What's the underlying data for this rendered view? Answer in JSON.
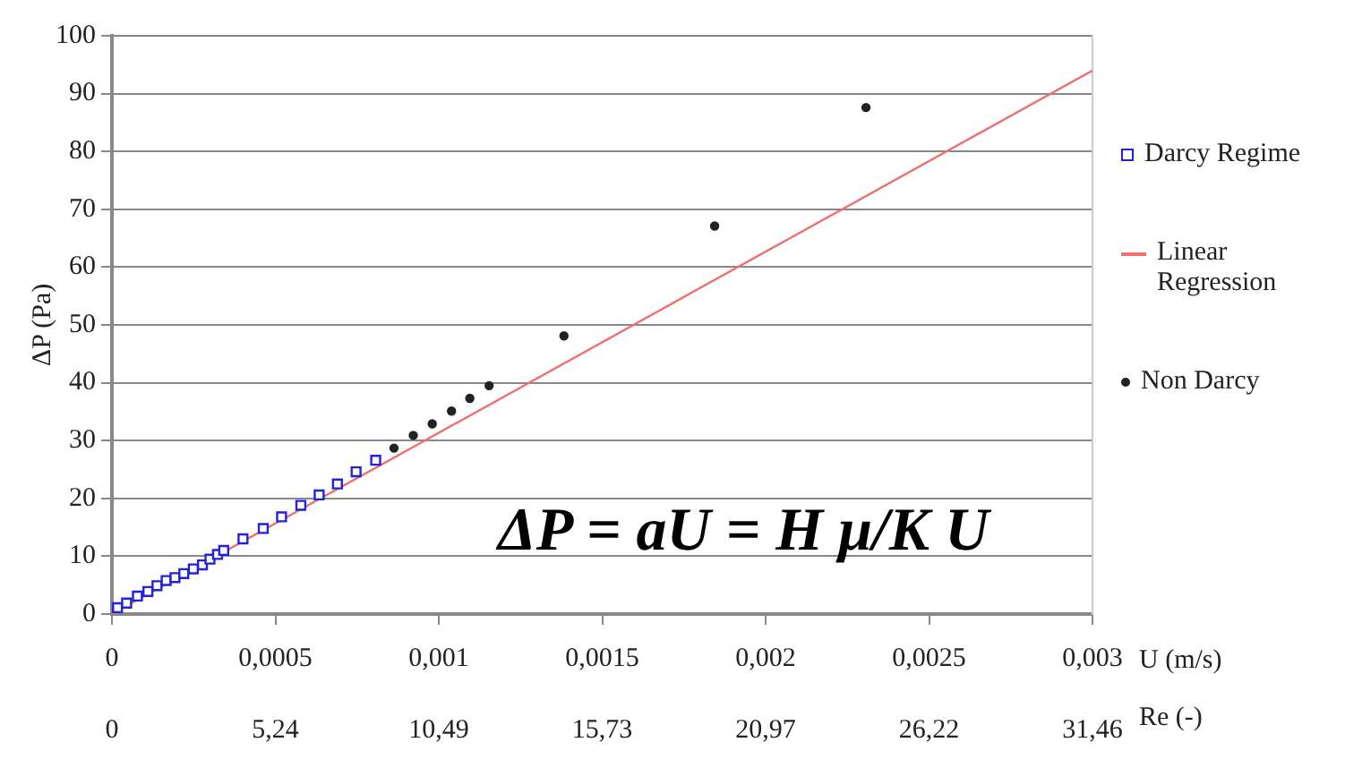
{
  "chart_data": {
    "type": "scatter",
    "ylabel": "ΔP (Pa)",
    "xlabel": "U (m/s)",
    "x2label": "Re (-)",
    "xlim": [
      0,
      0.003
    ],
    "xticks": [
      0,
      {
        "value": 0.0005,
        "label": "0,0005"
      },
      {
        "value": 0.001,
        "label": "0,001"
      },
      {
        "value": 0.0015,
        "label": "0,0015"
      },
      {
        "value": 0.002,
        "label": "0,002"
      },
      {
        "value": 0.0025,
        "label": "0,0025"
      },
      {
        "value": 0.003,
        "label": "0,003"
      }
    ],
    "x2lim": [
      0,
      31.46
    ],
    "x2ticks": [
      0,
      {
        "value": 5.24,
        "label": "5,24"
      },
      {
        "value": 10.49,
        "label": "10,49"
      },
      {
        "value": 15.73,
        "label": "15,73"
      },
      {
        "value": 20.97,
        "label": "20,97"
      },
      {
        "value": 26.22,
        "label": "26,22"
      },
      {
        "value": 31.46,
        "label": "31,46"
      }
    ],
    "ylim": [
      0,
      100
    ],
    "yticks": [
      0,
      10,
      20,
      30,
      40,
      50,
      60,
      70,
      80,
      90,
      100
    ],
    "grid": "y",
    "legend": "right",
    "annotations": [
      "ΔP = aU = H μ/K U"
    ],
    "series": [
      {
        "name": "Darcy Regime",
        "marker": "square",
        "color": "#2222dd",
        "x": [
          1.7e-05,
          4.5e-05,
          7.8e-05,
          0.00011,
          0.000138,
          0.000166,
          0.000193,
          0.00022,
          0.000249,
          0.000277,
          0.0003,
          0.000323,
          0.000342,
          0.000401,
          0.000463,
          0.000519,
          0.000578,
          0.000634,
          0.00069,
          0.000747,
          0.000807
        ],
        "values": [
          1.1,
          1.9,
          3.1,
          3.9,
          4.9,
          5.8,
          6.3,
          7.0,
          7.8,
          8.5,
          9.5,
          10.3,
          11.0,
          13.0,
          14.8,
          16.8,
          18.8,
          20.6,
          22.5,
          24.6,
          26.6
        ]
      },
      {
        "name": "Linear Regression",
        "type": "line",
        "marker": "none",
        "color": "#f07070",
        "x": [
          0,
          0.003
        ],
        "values": [
          0,
          94
        ]
      },
      {
        "name": "Non Darcy",
        "marker": "circle",
        "color": "#222222",
        "x": [
          0.000863,
          0.000922,
          0.00098,
          0.001039,
          0.001095,
          0.001154,
          0.001383,
          0.001844,
          0.002307
        ],
        "values": [
          28.7,
          30.9,
          32.9,
          35.1,
          37.3,
          39.5,
          48.1,
          67.1,
          87.6
        ]
      }
    ]
  }
}
